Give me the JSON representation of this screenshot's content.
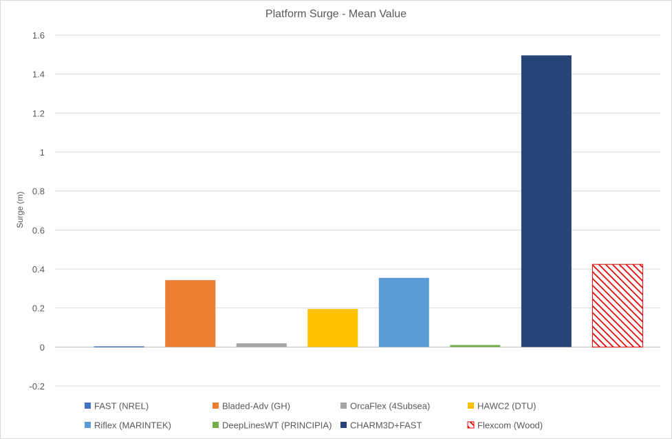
{
  "chart_data": {
    "type": "bar",
    "title": "Platform Surge - Mean Value",
    "xlabel": "",
    "ylabel": "Surge (m)",
    "ylim": [
      -0.2,
      1.6
    ],
    "yticks": [
      1.6,
      1.4,
      1.2,
      1,
      0.8,
      0.6,
      0.4,
      0.2,
      0,
      -0.2
    ],
    "grid": true,
    "legend_position": "bottom",
    "series": [
      {
        "name": "FAST (NREL)",
        "value": 0.0,
        "color": "#4472c4",
        "pattern": "solid"
      },
      {
        "name": "Bladed-Adv (GH)",
        "value": 0.343,
        "color": "#ed7d31",
        "pattern": "solid"
      },
      {
        "name": "OrcaFlex (4Subsea)",
        "value": 0.019,
        "color": "#a5a5a5",
        "pattern": "solid"
      },
      {
        "name": "HAWC2 (DTU)",
        "value": 0.195,
        "color": "#ffc000",
        "pattern": "solid"
      },
      {
        "name": "Riflex (MARINTEK)",
        "value": 0.355,
        "color": "#5b9bd5",
        "pattern": "solid"
      },
      {
        "name": "DeepLinesWT (PRINCIPIA)",
        "value": 0.01,
        "color": "#70ad47",
        "pattern": "solid"
      },
      {
        "name": "CHARM3D+FAST",
        "value": 1.496,
        "color": "#264478",
        "pattern": "solid"
      },
      {
        "name": "Flexcom (Wood)",
        "value": 0.424,
        "color": "#e00000",
        "pattern": "hatched"
      }
    ]
  }
}
